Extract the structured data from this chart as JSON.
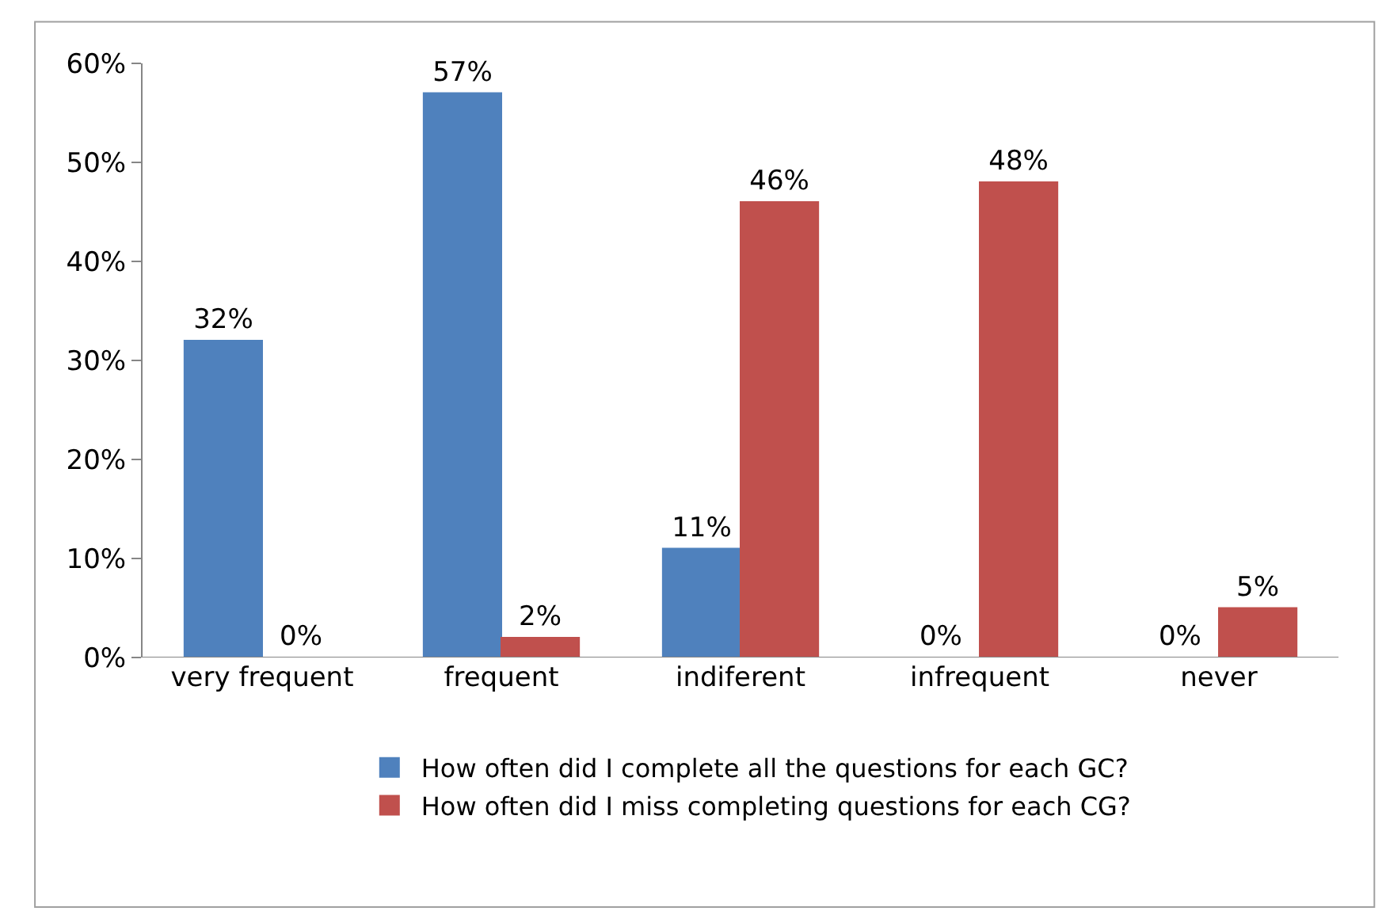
{
  "chart_data": {
    "type": "bar",
    "categories": [
      "very frequent",
      "frequent",
      "indiferent",
      "infrequent",
      "never"
    ],
    "series": [
      {
        "name": "How often did I complete all the questions for each GC?",
        "color": "#4f81bd",
        "values": [
          32,
          57,
          11,
          0,
          0
        ],
        "value_labels": [
          "32%",
          "57%",
          "11%",
          "0%",
          "0%"
        ]
      },
      {
        "name": "How often did I miss completing questions for each CG?",
        "color": "#c0504d",
        "values": [
          0,
          2,
          46,
          48,
          5
        ],
        "value_labels": [
          "0%",
          "2%",
          "46%",
          "48%",
          "5%"
        ]
      }
    ],
    "ylim": [
      0,
      60
    ],
    "yticks": [
      {
        "value": 0,
        "label": "0%"
      },
      {
        "value": 10,
        "label": "10%"
      },
      {
        "value": 20,
        "label": "20%"
      },
      {
        "value": 30,
        "label": "30%"
      },
      {
        "value": 40,
        "label": "40%"
      },
      {
        "value": 50,
        "label": "50%"
      },
      {
        "value": 60,
        "label": "60%"
      }
    ],
    "legend": "bottom"
  }
}
